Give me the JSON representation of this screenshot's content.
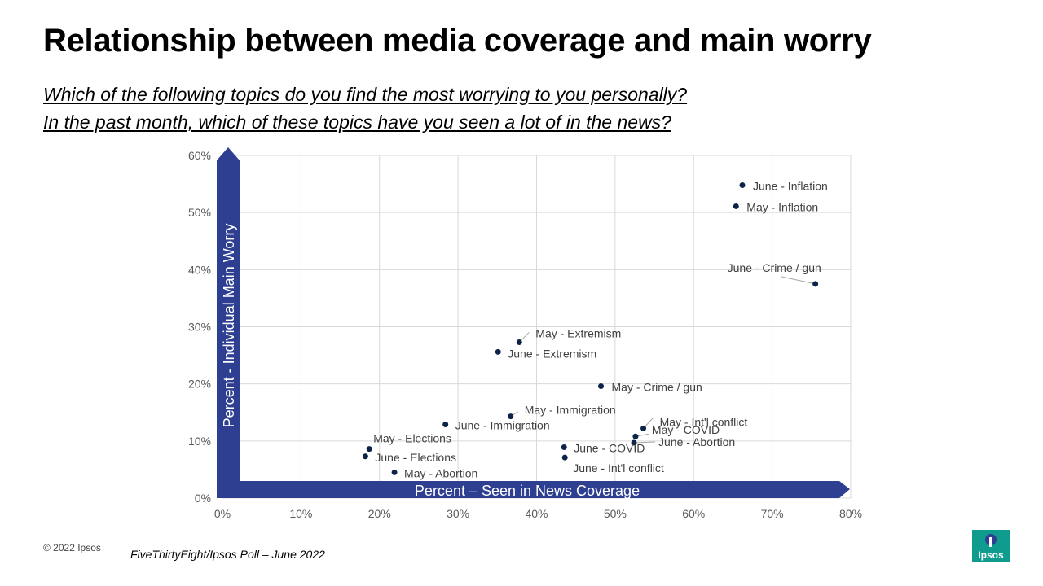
{
  "title": "Relationship between media coverage and main worry",
  "questions": [
    "Which of the following topics do you find the most worrying to you personally?",
    "In the past month, which of these topics have you seen a lot of in the news?"
  ],
  "footer": {
    "copyright": "© 2022 Ipsos",
    "source": "FiveThirtyEight/Ipsos Poll – June 2022",
    "logo_text": "Ipsos"
  },
  "colors": {
    "accent": "#2e3f92",
    "point": "#0d2347",
    "grid": "#d9d9d9",
    "logo": "#0f9b8e"
  },
  "chart_data": {
    "type": "scatter",
    "xlabel": "Percent – Seen in News Coverage",
    "ylabel": "Percent - Individual Main Worry",
    "xlim": [
      0,
      80
    ],
    "ylim": [
      0,
      60
    ],
    "xticks": [
      "0%",
      "10%",
      "20%",
      "30%",
      "40%",
      "50%",
      "60%",
      "70%",
      "80%"
    ],
    "yticks": [
      "0%",
      "10%",
      "20%",
      "30%",
      "40%",
      "50%",
      "60%"
    ],
    "grid": true,
    "points": [
      {
        "label": "June - Inflation",
        "x": 66.2,
        "y": 54.8
      },
      {
        "label": "May - Inflation",
        "x": 65.4,
        "y": 51.1
      },
      {
        "label": "June - Crime / gun",
        "x": 75.5,
        "y": 37.5
      },
      {
        "label": "May - Extremism",
        "x": 37.8,
        "y": 27.3
      },
      {
        "label": "June - Extremism",
        "x": 35.1,
        "y": 25.6
      },
      {
        "label": "May - Crime / gun",
        "x": 48.2,
        "y": 19.6
      },
      {
        "label": "May - Immigration",
        "x": 36.7,
        "y": 14.3
      },
      {
        "label": "June - Immigration",
        "x": 28.4,
        "y": 12.9
      },
      {
        "label": "May - Int'l conflict",
        "x": 53.6,
        "y": 12.2
      },
      {
        "label": "May - COVID",
        "x": 52.6,
        "y": 10.8
      },
      {
        "label": "June - Abortion",
        "x": 52.4,
        "y": 9.7
      },
      {
        "label": "June - COVID",
        "x": 43.5,
        "y": 8.9
      },
      {
        "label": "June - Int'l conflict",
        "x": 43.6,
        "y": 7.1
      },
      {
        "label": "May - Elections",
        "x": 18.7,
        "y": 8.6
      },
      {
        "label": "June - Elections",
        "x": 18.2,
        "y": 7.3
      },
      {
        "label": "May - Abortion",
        "x": 21.9,
        "y": 4.5
      }
    ]
  }
}
